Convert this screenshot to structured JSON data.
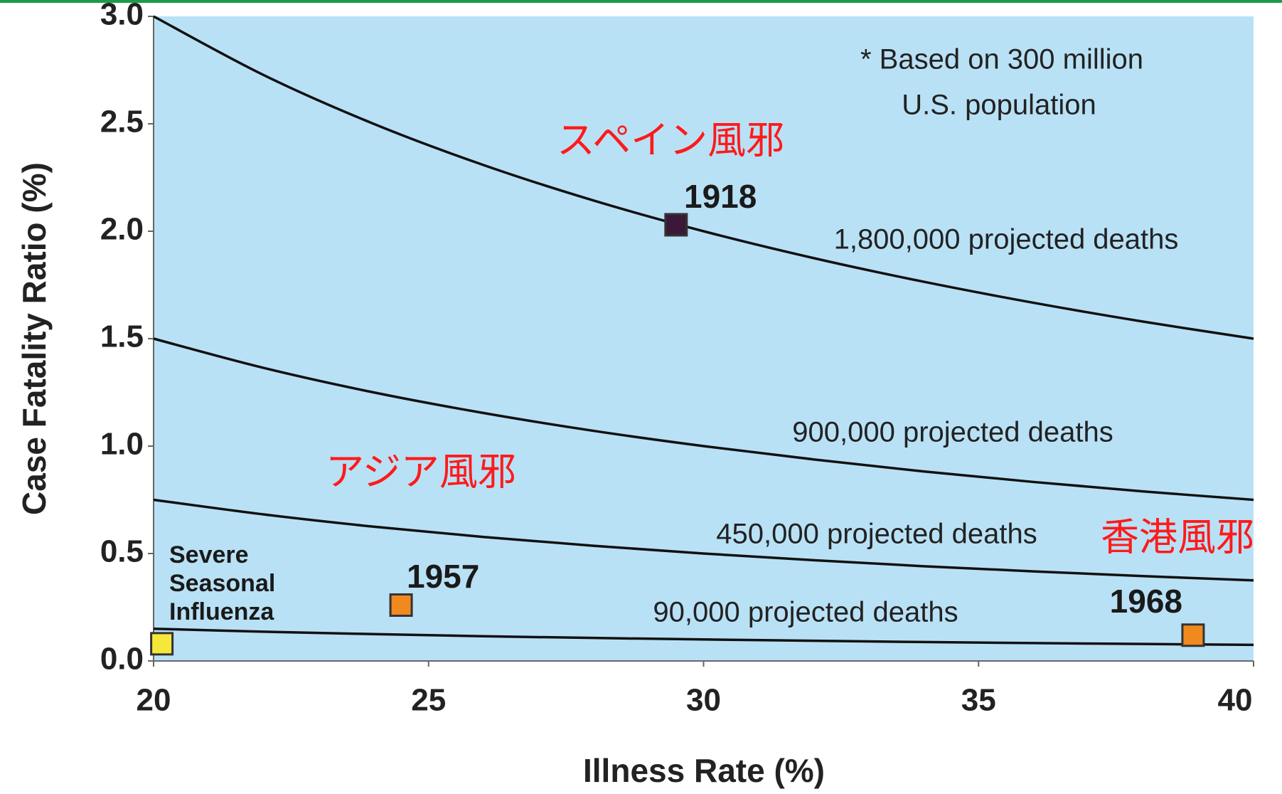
{
  "chart_data": {
    "type": "line",
    "x_label": "Illness Rate (%)",
    "y_label": "Case Fatality Ratio (%)",
    "xlim": [
      20,
      40
    ],
    "ylim": [
      0,
      3
    ],
    "xticks": [
      20,
      25,
      30,
      35,
      40
    ],
    "yticks": [
      {
        "value": 0,
        "label": "0.0"
      },
      {
        "value": 0.5,
        "label": "0.5"
      },
      {
        "value": 1,
        "label": "1.0"
      },
      {
        "value": 1.5,
        "label": "1.5"
      },
      {
        "value": 2,
        "label": "2.0"
      },
      {
        "value": 2.5,
        "label": "2.5"
      },
      {
        "value": 3,
        "label": "3.0"
      }
    ],
    "x": [
      20,
      22,
      24,
      26,
      28,
      30,
      32,
      34,
      36,
      38,
      40
    ],
    "series": [
      {
        "name": "1,800,000 projected deaths",
        "color": "#111111",
        "values": [
          3,
          2.727,
          2.5,
          2.308,
          2.143,
          2,
          1.875,
          1.765,
          1.667,
          1.579,
          1.5
        ]
      },
      {
        "name": "900,000 projected deaths",
        "color": "#111111",
        "values": [
          1.5,
          1.364,
          1.25,
          1.154,
          1.071,
          1,
          0.938,
          0.882,
          0.833,
          0.789,
          0.75
        ]
      },
      {
        "name": "450,000 projected deaths",
        "color": "#111111",
        "values": [
          0.75,
          0.682,
          0.625,
          0.577,
          0.536,
          0.5,
          0.469,
          0.441,
          0.417,
          0.395,
          0.375
        ]
      },
      {
        "name": "90,000 projected deaths",
        "color": "#111111",
        "values": [
          0.15,
          0.136,
          0.125,
          0.115,
          0.107,
          0.1,
          0.094,
          0.088,
          0.083,
          0.079,
          0.075
        ]
      }
    ],
    "points": [
      {
        "label": [
          "1918"
        ],
        "x": 29.5,
        "y": 2.03,
        "color": "#3a1838"
      },
      {
        "label": [
          "1957"
        ],
        "x": 24.5,
        "y": 0.26,
        "color": "#f08a1e"
      },
      {
        "label": [
          "1968"
        ],
        "x": 38.9,
        "y": 0.12,
        "color": "#f08a1e"
      },
      {
        "label": [
          "Severe",
          "Seasonal",
          "Influenza"
        ],
        "x": 20.15,
        "y": 0.08,
        "color": "#f5e83a"
      }
    ],
    "annotations": [
      "スペイン風邪",
      "アジア風邪",
      "香港風邪"
    ],
    "annotation_color": "#ff1a1a",
    "note": [
      "* Based on 300 million",
      "U.S. population"
    ],
    "plot_color": "#b9e1f6"
  }
}
